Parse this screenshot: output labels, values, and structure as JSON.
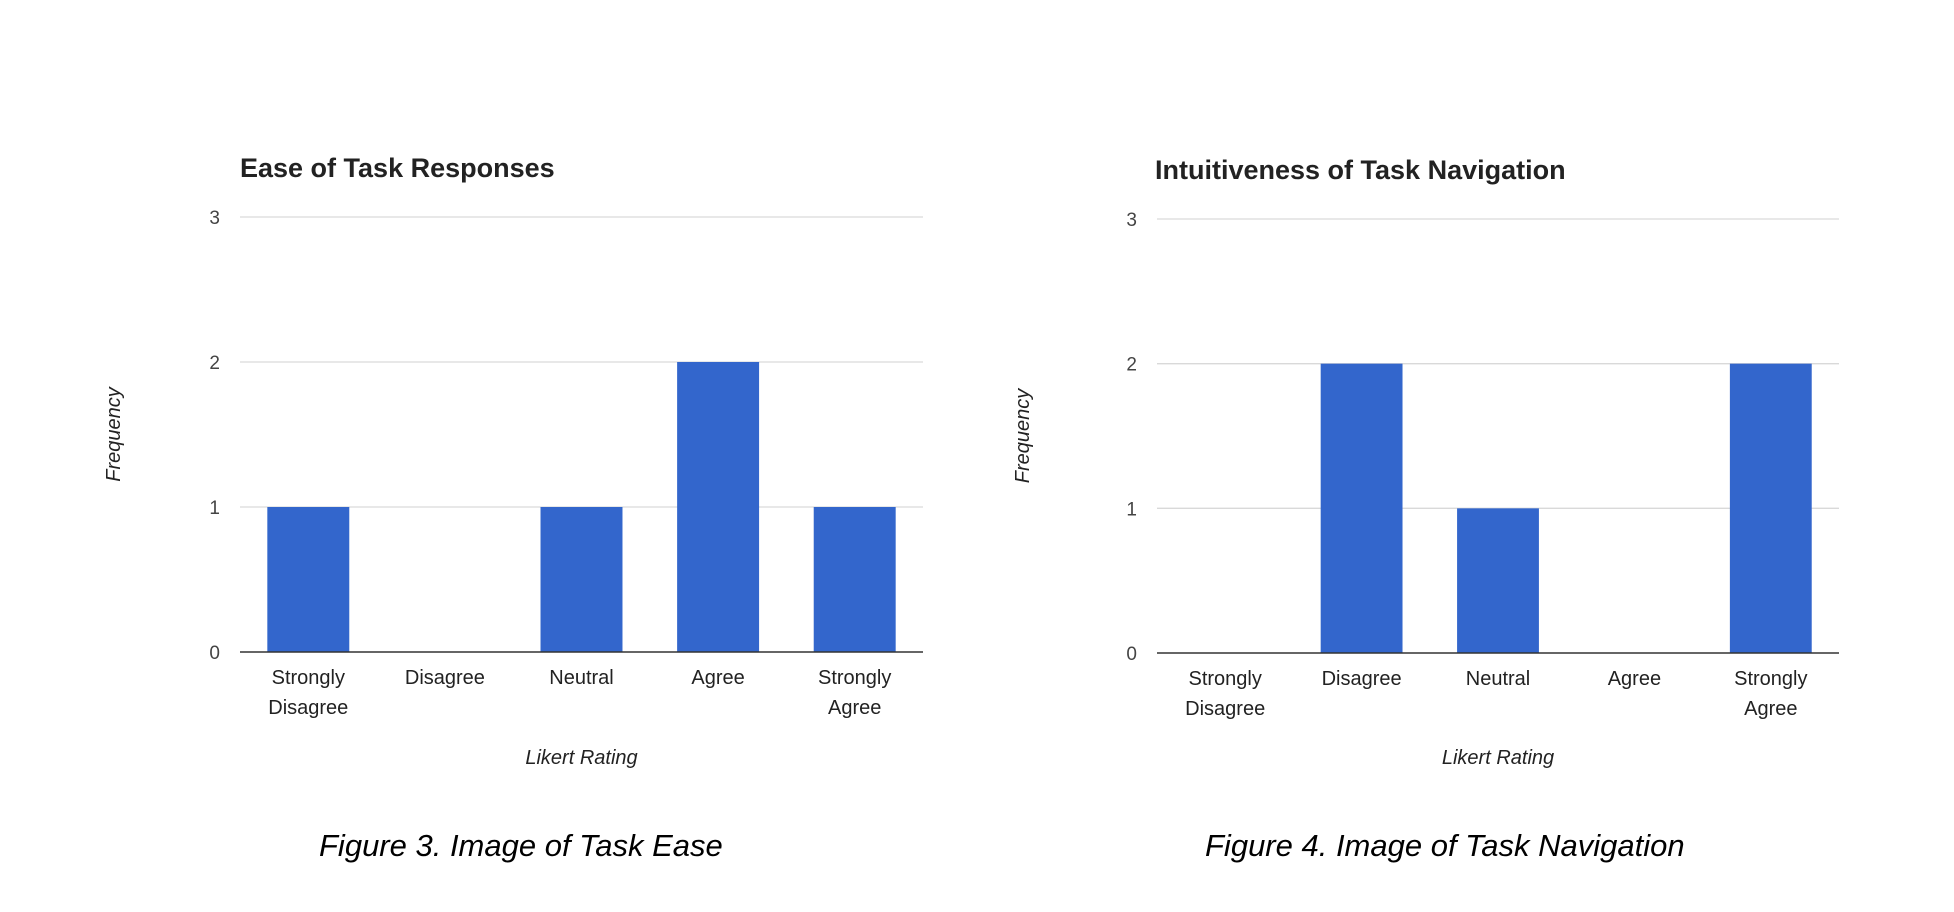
{
  "chart_data": [
    {
      "type": "bar",
      "title": "Ease of Task Responses",
      "xlabel": "Likert Rating",
      "ylabel": "Frequency",
      "categories": [
        "Strongly Disagree",
        "Disagree",
        "Neutral",
        "Agree",
        "Strongly Agree"
      ],
      "category_lines": [
        [
          "Strongly",
          "Disagree"
        ],
        [
          "Disagree"
        ],
        [
          "Neutral"
        ],
        [
          "Agree"
        ],
        [
          "Strongly",
          "Agree"
        ]
      ],
      "values": [
        1,
        0,
        1,
        2,
        1
      ],
      "ylim": [
        0,
        3
      ],
      "yticks": [
        "0",
        "1",
        "2",
        "3"
      ],
      "grid": true,
      "legend": "none",
      "bar_color": "#3366cc"
    },
    {
      "type": "bar",
      "title": "Intuitiveness of Task Navigation",
      "xlabel": "Likert Rating",
      "ylabel": "Frequency",
      "categories": [
        "Strongly Disagree",
        "Disagree",
        "Neutral",
        "Agree",
        "Strongly Agree"
      ],
      "category_lines": [
        [
          "Strongly",
          "Disagree"
        ],
        [
          "Disagree"
        ],
        [
          "Neutral"
        ],
        [
          "Agree"
        ],
        [
          "Strongly",
          "Agree"
        ]
      ],
      "values": [
        0,
        2,
        1,
        0,
        2
      ],
      "ylim": [
        0,
        3
      ],
      "yticks": [
        "0",
        "1",
        "2",
        "3"
      ],
      "grid": true,
      "legend": "none",
      "bar_color": "#3366cc"
    }
  ],
  "captions": {
    "left": "Figure 3. Image of Task Ease",
    "right": "Figure 4. Image of Task Navigation"
  }
}
